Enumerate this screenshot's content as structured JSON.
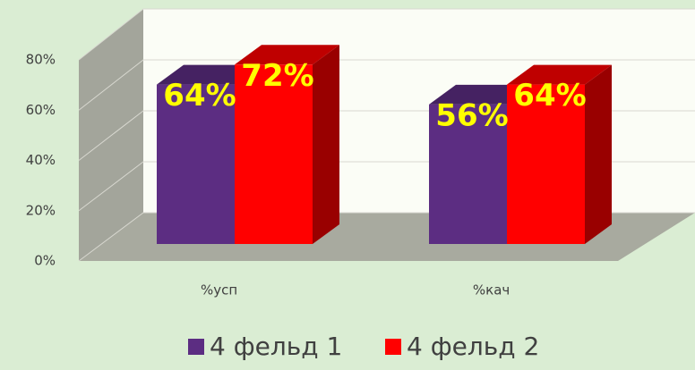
{
  "chart_data": {
    "type": "bar3d",
    "categories": [
      "%усп",
      "%кач"
    ],
    "series": [
      {
        "name": "4 фельд 1",
        "color": "#5c2d82",
        "values": [
          64,
          56
        ],
        "value_labels": [
          "64%",
          "56%"
        ]
      },
      {
        "name": "4 фельд 2",
        "color": "#ff0000",
        "values": [
          72,
          64
        ],
        "value_labels": [
          "72%",
          "64%"
        ]
      }
    ],
    "ylim": [
      0,
      80
    ],
    "yticks": [
      {
        "value": 0,
        "label": "0%"
      },
      {
        "value": 20,
        "label": "20%"
      },
      {
        "value": 40,
        "label": "40%"
      },
      {
        "value": 60,
        "label": "60%"
      },
      {
        "value": 80,
        "label": "80%"
      }
    ],
    "grid": true,
    "legend": "bottom"
  }
}
